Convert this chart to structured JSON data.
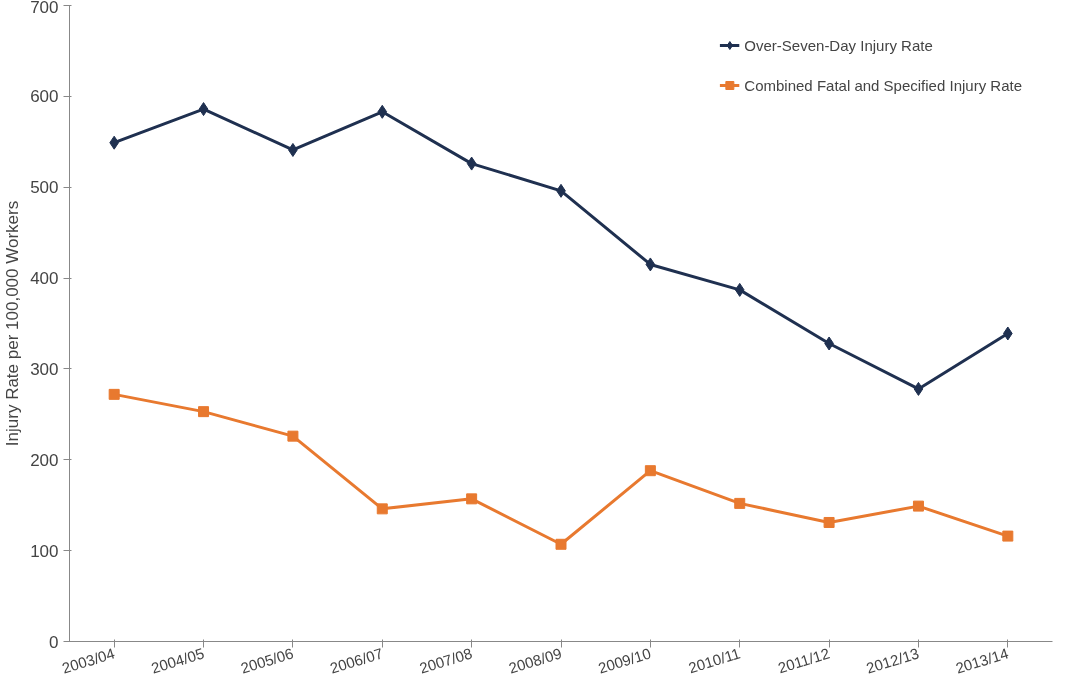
{
  "chart_data": {
    "type": "line",
    "ylabel": "Injury Rate per 100,000 Workers",
    "categories": [
      "2003/04",
      "2004/05",
      "2005/06",
      "2006/07",
      "2007/08",
      "2008/09",
      "2009/10",
      "2010/11",
      "2011/12",
      "2012/13",
      "2013/14"
    ],
    "series": [
      {
        "name": "Over-Seven-Day Injury Rate",
        "color": "#1f3050",
        "marker": "diamond",
        "values": [
          549,
          586,
          541,
          583,
          526,
          496,
          415,
          387,
          328,
          278,
          339
        ]
      },
      {
        "name": "Combined Fatal and Specified Injury Rate",
        "color": "#e8792f",
        "marker": "square",
        "values": [
          272,
          253,
          226,
          146,
          157,
          107,
          188,
          152,
          131,
          149,
          116
        ]
      }
    ],
    "ylim": [
      0,
      700
    ],
    "yticks": [
      0,
      100,
      200,
      300,
      400,
      500,
      600,
      700
    ],
    "grid": false,
    "legend": "top right",
    "line_style": "solid"
  }
}
